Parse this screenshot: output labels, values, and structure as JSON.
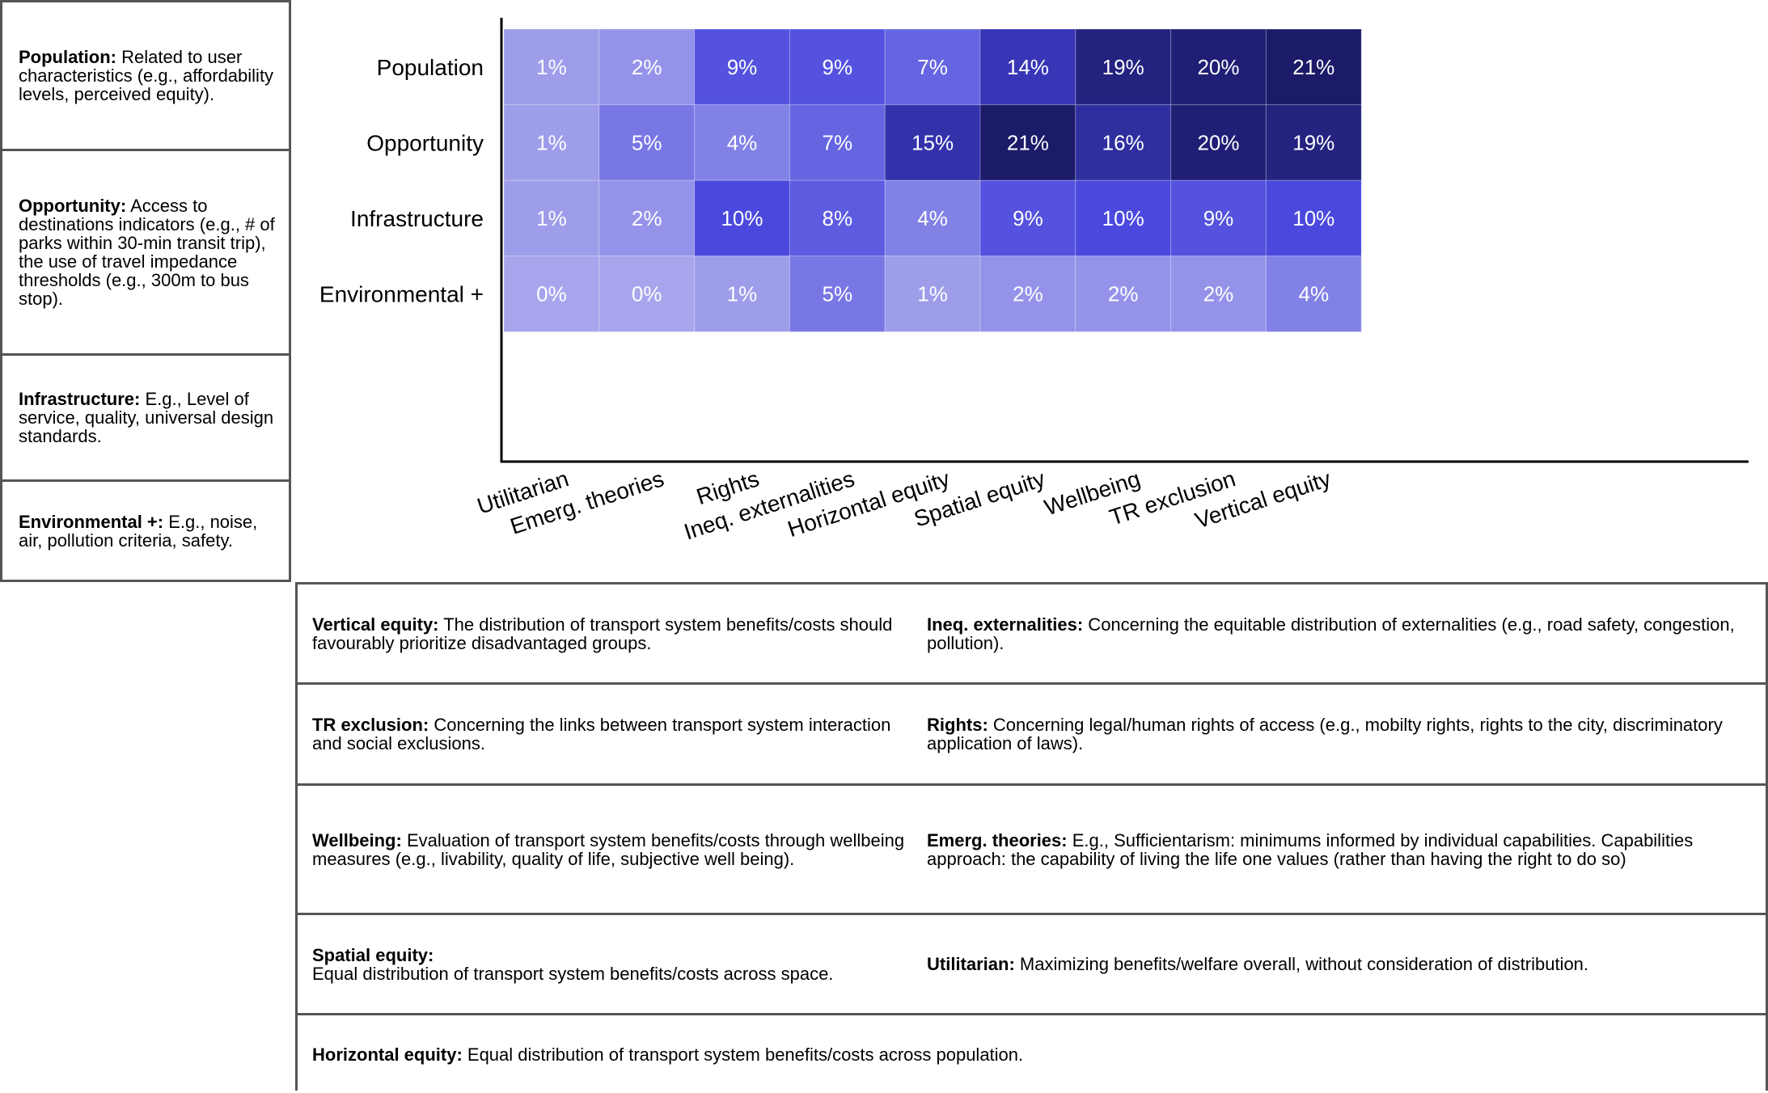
{
  "left_legend": [
    {
      "term": "Population:",
      "desc": " Related to user characteristics (e.g., affordability levels, perceived equity)."
    },
    {
      "term": "Opportunity:",
      "desc": " Access to destinations indicators (e.g., # of parks within 30-min transit trip), the use of travel impedance thresholds (e.g., 300m to bus stop)."
    },
    {
      "term": "Infrastructure:",
      "desc": " E.g., Level of service, quality, universal design standards."
    },
    {
      "term": "Environmental +:",
      "desc": " E.g., noise, air, pollution criteria, safety."
    }
  ],
  "chart_data": {
    "type": "heatmap",
    "rows": [
      "Population",
      "Opportunity",
      "Infrastructure",
      "Environmental +"
    ],
    "columns": [
      "Utilitarian",
      "Emerg. theories",
      "Rights",
      "Ineq. externalities",
      "Horizontal equity",
      "Spatial equity",
      "Wellbeing",
      "TR exclusion",
      "Vertical equity"
    ],
    "values": [
      [
        1,
        2,
        9,
        9,
        7,
        14,
        19,
        20,
        21
      ],
      [
        1,
        5,
        4,
        7,
        15,
        21,
        16,
        20,
        19
      ],
      [
        1,
        2,
        10,
        8,
        4,
        9,
        10,
        9,
        10
      ],
      [
        0,
        0,
        1,
        5,
        1,
        2,
        2,
        2,
        4
      ]
    ],
    "value_suffix": "%",
    "colormap": {
      "low": "#a7a6ec",
      "high": "#1c1b6a"
    }
  },
  "definitions": [
    {
      "left": {
        "term": "Vertical equity:",
        "desc": " The distribution of transport system benefits/costs should favourably prioritize disadvantaged groups."
      },
      "right": {
        "term": "Ineq. externalities:",
        "desc": " Concerning the equitable distribution of externalities (e.g., road safety, congestion, pollution)."
      }
    },
    {
      "left": {
        "term": "TR exclusion:",
        "desc": " Concerning the links between transport system interaction and social exclusions."
      },
      "right": {
        "term": "Rights:",
        "desc": " Concerning legal/human rights of access (e.g., mobilty rights, rights to the city, discriminatory application of laws)."
      }
    },
    {
      "left": {
        "term": "Wellbeing:",
        "desc": " Evaluation of transport system benefits/costs through wellbeing measures (e.g., livability, quality of life, subjective well being)."
      },
      "right": {
        "term": "Emerg. theories:",
        "desc": " E.g., Sufficientarism: minimums informed by individual capabilities. Capabilities approach: the capability of living the life one values (rather than having the right to do so)"
      }
    },
    {
      "left": {
        "term": "Spatial equity:",
        "desc": "Equal distribution of transport system benefits/costs across space."
      },
      "right": {
        "term": "Utilitarian:",
        "desc": " Maximizing benefits/welfare overall, without consideration of distribution."
      }
    },
    {
      "full": {
        "term": "Horizontal equity:",
        "desc": " Equal distribution of transport system benefits/costs across population."
      }
    }
  ]
}
